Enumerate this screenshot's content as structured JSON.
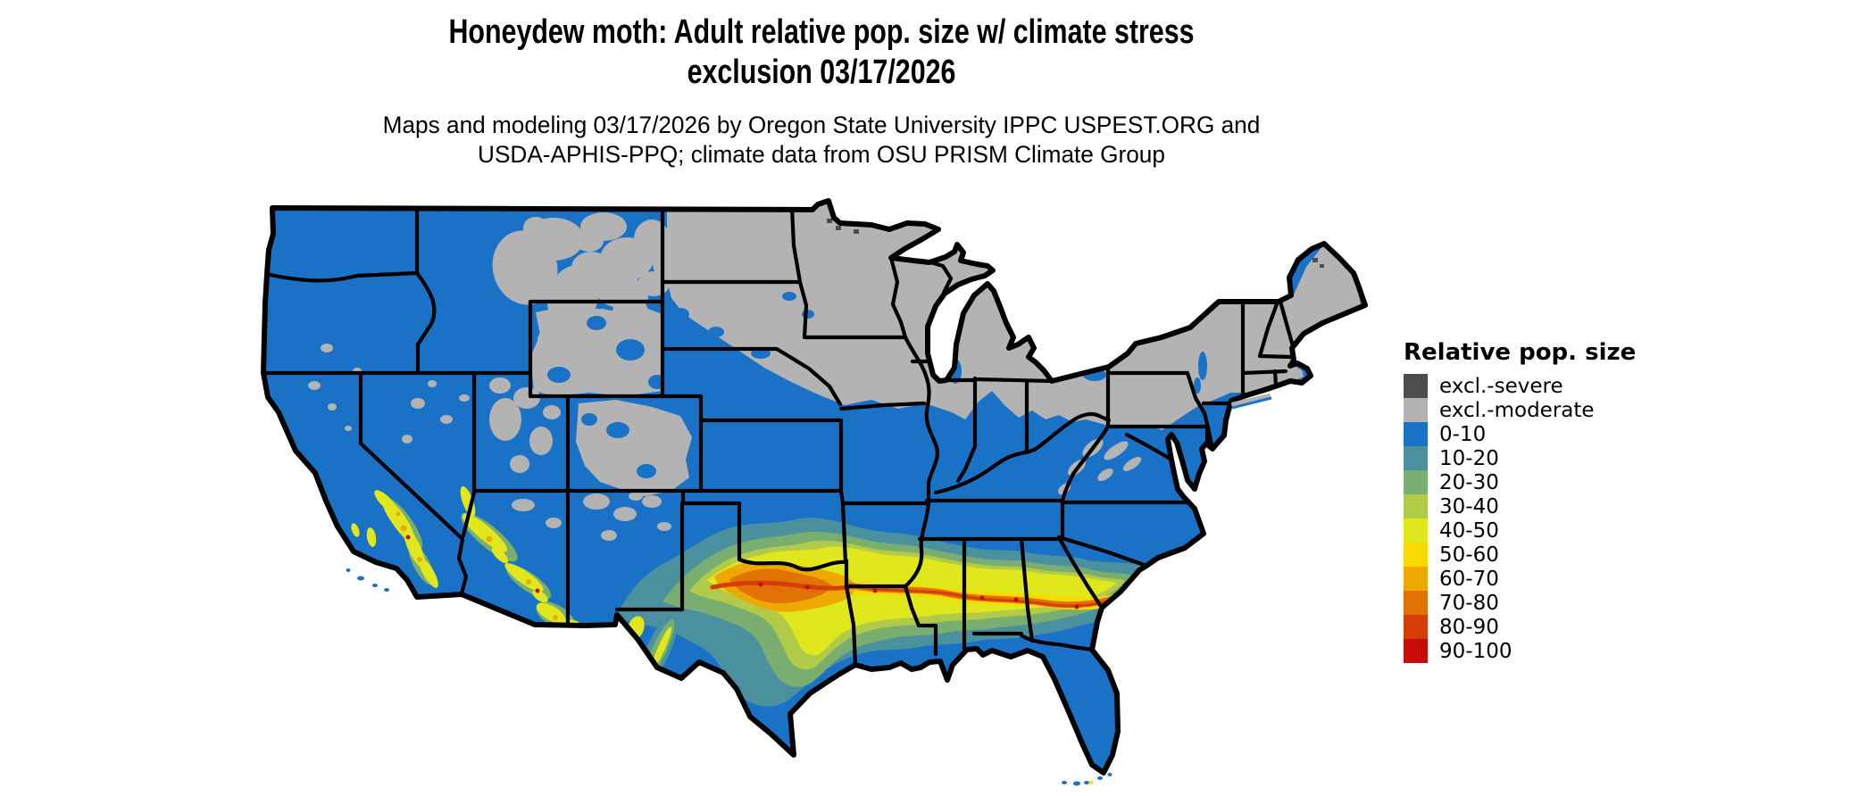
{
  "header": {
    "title_line1": "Honeydew moth: Adult relative pop. size w/ climate stress",
    "title_line2": "exclusion 03/17/2026",
    "subtitle_line1": "Maps and modeling 03/17/2026 by Oregon State University IPPC USPEST.ORG and",
    "subtitle_line2": "USDA-APHIS-PPQ; climate data from OSU PRISM Climate Group"
  },
  "legend": {
    "title": "Relative pop. size",
    "items": [
      {
        "key": "excl-severe",
        "label": "excl.-severe",
        "color": "#4d4d4d"
      },
      {
        "key": "excl-moderate",
        "label": "excl.-moderate",
        "color": "#b3b3b3"
      },
      {
        "key": "r0-10",
        "label": "0-10",
        "color": "#1a72c6"
      },
      {
        "key": "r10-20",
        "label": "10-20",
        "color": "#4a909e"
      },
      {
        "key": "r20-30",
        "label": "20-30",
        "color": "#79ae70"
      },
      {
        "key": "r30-40",
        "label": "30-40",
        "color": "#b1cb49"
      },
      {
        "key": "r40-50",
        "label": "40-50",
        "color": "#e1e71d"
      },
      {
        "key": "r50-60",
        "label": "50-60",
        "color": "#f8da01"
      },
      {
        "key": "r60-70",
        "label": "60-70",
        "color": "#eea900"
      },
      {
        "key": "r70-80",
        "label": "70-80",
        "color": "#e07206"
      },
      {
        "key": "r80-90",
        "label": "80-90",
        "color": "#d53e08"
      },
      {
        "key": "r90-100",
        "label": "90-100",
        "color": "#c70b07"
      }
    ]
  },
  "map": {
    "area": "Contiguous United States choropleth grid",
    "outline_color": "#000000",
    "background_color": "#ffffff"
  }
}
